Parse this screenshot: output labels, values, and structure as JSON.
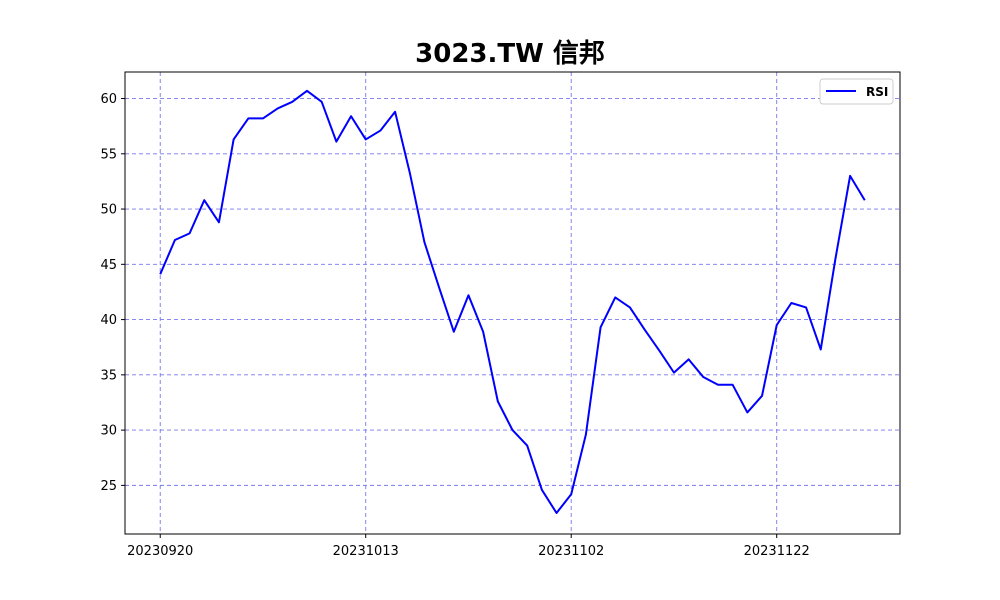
{
  "chart_data": {
    "type": "line",
    "title": "3023.TW 信邦",
    "xlabel": "",
    "ylabel": "",
    "x_tick_labels": [
      "20230920",
      "20231013",
      "20231102",
      "20231122"
    ],
    "x_tick_indices": [
      0,
      14,
      28,
      42
    ],
    "y_ticks": [
      25,
      30,
      35,
      40,
      45,
      50,
      55,
      60
    ],
    "ylim": [
      20.6,
      62.4
    ],
    "xlim": [
      -2.4,
      50.4
    ],
    "grid": true,
    "legend": "top-right",
    "series": [
      {
        "name": "RSI",
        "color": "#0000ff",
        "values": [
          44.1,
          47.2,
          47.8,
          50.8,
          48.8,
          56.3,
          58.2,
          58.2,
          59.1,
          59.7,
          60.7,
          59.7,
          56.1,
          58.4,
          56.3,
          57.1,
          58.8,
          53.3,
          47.0,
          42.9,
          38.9,
          42.2,
          38.9,
          32.6,
          30.0,
          28.6,
          24.6,
          22.5,
          24.2,
          29.6,
          39.3,
          42.0,
          41.1,
          39.1,
          37.2,
          35.2,
          36.4,
          34.8,
          34.1,
          34.1,
          31.6,
          33.1,
          39.5,
          41.5,
          41.1,
          37.3,
          45.5,
          53.0,
          50.8
        ]
      }
    ]
  }
}
